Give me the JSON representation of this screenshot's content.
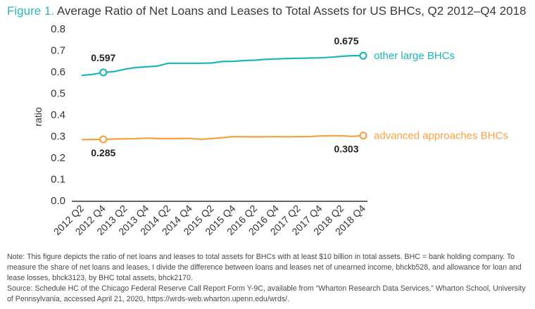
{
  "figure_label": "Figure 1.",
  "title": "Average Ratio of Net Loans and Leases to Total Assets for US BHCs, Q2 2012–Q4 2018",
  "note": "Note: This figure depicts the ratio of net loans and leases to total assets for BHCs with at least $10 billion in total assets. BHC = bank holding company. To measure the share of net loans and leases, I divide the difference between loans and leases net of unearned income, bhckb528, and allowance for loan and lease losses, bhck3123, by BHC total assets, bhck2170.",
  "source": "Source: Schedule HC of the Chicago Federal Reserve Call Report Form Y-9C, available from “Wharton Research Data Services,” Wharton School, University of Pennsylvania, accessed April 21, 2020, https://wrds-web.wharton.upenn.edu/wrds/.",
  "colors": {
    "other_large": "#1fb5b5",
    "advanced": "#f7a241",
    "axis": "#333333"
  },
  "chart_data": {
    "type": "line",
    "ylabel": "ratio",
    "ylim": [
      0,
      0.8
    ],
    "yticks": [
      "0.0",
      "0.1",
      "0.2",
      "0.3",
      "0.4",
      "0.5",
      "0.6",
      "0.7",
      "0.8"
    ],
    "grid": false,
    "x": [
      "2012 Q2",
      "2012 Q3",
      "2012 Q4",
      "2013 Q1",
      "2013 Q2",
      "2013 Q3",
      "2013 Q4",
      "2014 Q1",
      "2014 Q2",
      "2014 Q3",
      "2014 Q4",
      "2015 Q1",
      "2015 Q2",
      "2015 Q3",
      "2015 Q4",
      "2016 Q1",
      "2016 Q2",
      "2016 Q3",
      "2016 Q4",
      "2017 Q1",
      "2017 Q2",
      "2017 Q3",
      "2017 Q4",
      "2018 Q1",
      "2018 Q2",
      "2018 Q3",
      "2018 Q4"
    ],
    "xtick_labels": [
      "2012 Q2",
      "2012 Q4",
      "2013 Q2",
      "2013 Q4",
      "2014 Q2",
      "2014 Q4",
      "2015 Q2",
      "2015 Q4",
      "2016 Q2",
      "2016 Q4",
      "2017 Q2",
      "2017 Q4",
      "2018 Q2",
      "2018 Q4"
    ],
    "series": [
      {
        "name": "other large BHCs",
        "values": [
          0.583,
          0.588,
          0.597,
          0.601,
          0.612,
          0.62,
          0.623,
          0.627,
          0.64,
          0.64,
          0.64,
          0.64,
          0.641,
          0.648,
          0.649,
          0.652,
          0.654,
          0.658,
          0.66,
          0.662,
          0.663,
          0.664,
          0.665,
          0.668,
          0.672,
          0.675,
          0.675
        ],
        "annotations": [
          {
            "index": 2,
            "label": "0.597",
            "position": "above"
          },
          {
            "index": 26,
            "label": "0.675",
            "position": "above-left"
          }
        ]
      },
      {
        "name": "advanced approaches BHCs",
        "values": [
          0.284,
          0.285,
          0.285,
          0.287,
          0.288,
          0.288,
          0.291,
          0.289,
          0.289,
          0.289,
          0.29,
          0.286,
          0.289,
          0.293,
          0.298,
          0.297,
          0.297,
          0.297,
          0.298,
          0.297,
          0.298,
          0.298,
          0.301,
          0.302,
          0.302,
          0.299,
          0.303
        ],
        "annotations": [
          {
            "index": 2,
            "label": "0.285",
            "position": "below"
          },
          {
            "index": 26,
            "label": "0.303",
            "position": "below-left"
          }
        ]
      }
    ]
  }
}
